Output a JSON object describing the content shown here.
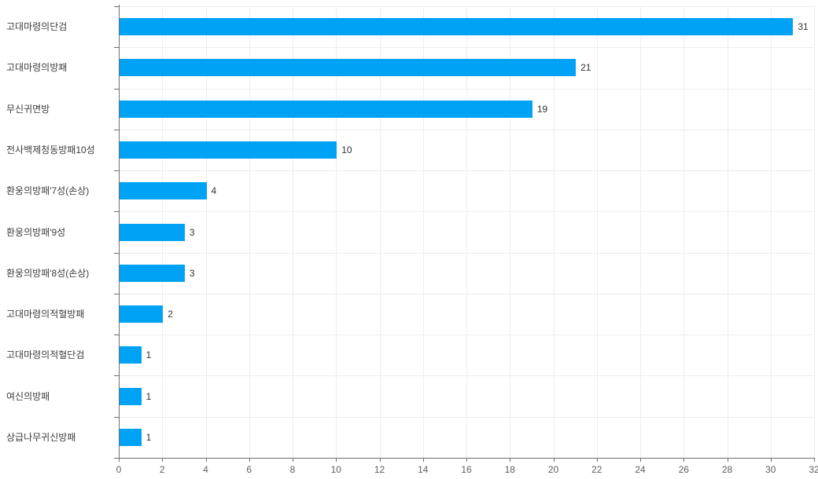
{
  "chart_data": {
    "type": "bar",
    "orientation": "horizontal",
    "title": "",
    "xlabel": "",
    "ylabel": "",
    "categories": [
      "고대마령의단검",
      "고대마령의방패",
      "무신귀면방",
      "전사백제청동방패10성",
      "환웅의방패'7성(손상)",
      "환웅의방패'9성",
      "환웅의방패'8성(손상)",
      "고대마령의적혈방패",
      "고대마령의적혈단검",
      "여신의방패",
      "상급나무귀신방패"
    ],
    "values": [
      31,
      21,
      19,
      10,
      4,
      3,
      3,
      2,
      1,
      1,
      1
    ],
    "value_labels": [
      "31",
      "21",
      "19",
      "10",
      "4",
      "3",
      "3",
      "2",
      "1",
      "1",
      "1"
    ],
    "x_ticks": [
      0,
      2,
      4,
      6,
      8,
      10,
      12,
      14,
      16,
      18,
      20,
      22,
      24,
      26,
      28,
      30,
      32
    ],
    "x_tick_labels": [
      "0",
      "2",
      "4",
      "6",
      "8",
      "10",
      "12",
      "14",
      "16",
      "18",
      "20",
      "22",
      "24",
      "26",
      "28",
      "30",
      "32"
    ],
    "xlim": [
      0,
      32
    ],
    "grid": true,
    "legend": false
  },
  "colors": {
    "bar": "#00a2f5",
    "axis": "#6e6e6e",
    "grid": "#ededed",
    "label_text": "#3d3d3d",
    "value_text": "#333333",
    "tick_text": "#5f5f5f",
    "background": "#ffffff"
  }
}
